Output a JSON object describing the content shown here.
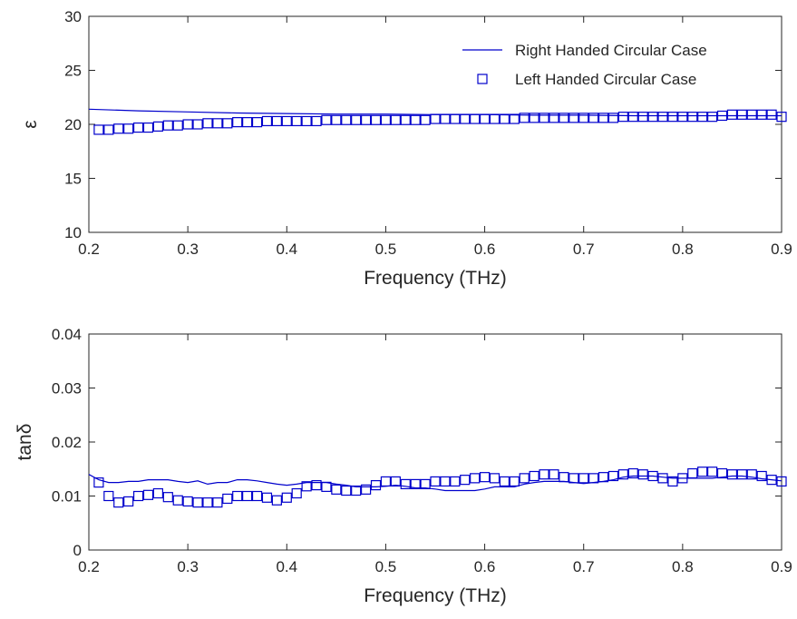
{
  "chart_data": [
    {
      "type": "line",
      "xlabel": "Frequency (THz)",
      "ylabel": "ε",
      "xlim": [
        0.2,
        0.9
      ],
      "ylim": [
        10,
        30
      ],
      "xticks": [
        0.2,
        0.3,
        0.4,
        0.5,
        0.6,
        0.7,
        0.8,
        0.9
      ],
      "xtick_labels": [
        "0.2",
        "0.3",
        "0.4",
        "0.5",
        "0.6",
        "0.7",
        "0.8",
        "0.9"
      ],
      "yticks": [
        10,
        15,
        20,
        25,
        30
      ],
      "ytick_labels": [
        "10",
        "15",
        "20",
        "25",
        "30"
      ],
      "grid": false,
      "legend": "top-right",
      "series": [
        {
          "name": "Right Handed Circular Case",
          "style": "line",
          "color": "#0000cc",
          "x": [
            0.2,
            0.25,
            0.3,
            0.35,
            0.4,
            0.45,
            0.5,
            0.55,
            0.6,
            0.65,
            0.7,
            0.75,
            0.8,
            0.85,
            0.9
          ],
          "y": [
            21.4,
            21.25,
            21.15,
            21.05,
            21.0,
            20.95,
            20.95,
            20.9,
            20.9,
            20.85,
            20.85,
            20.8,
            20.8,
            20.8,
            20.8
          ]
        },
        {
          "name": "Left Handed Circular Case",
          "style": "square-markers",
          "color": "#0000cc",
          "x": [
            0.21,
            0.22,
            0.23,
            0.24,
            0.25,
            0.26,
            0.27,
            0.28,
            0.29,
            0.3,
            0.31,
            0.32,
            0.33,
            0.34,
            0.35,
            0.36,
            0.37,
            0.38,
            0.39,
            0.4,
            0.41,
            0.42,
            0.43,
            0.44,
            0.45,
            0.46,
            0.47,
            0.48,
            0.49,
            0.5,
            0.51,
            0.52,
            0.53,
            0.54,
            0.55,
            0.56,
            0.57,
            0.58,
            0.59,
            0.6,
            0.61,
            0.62,
            0.63,
            0.64,
            0.65,
            0.66,
            0.67,
            0.68,
            0.69,
            0.7,
            0.71,
            0.72,
            0.73,
            0.74,
            0.75,
            0.76,
            0.77,
            0.78,
            0.79,
            0.8,
            0.81,
            0.82,
            0.83,
            0.84,
            0.85,
            0.86,
            0.87,
            0.88,
            0.89,
            0.9
          ],
          "y": [
            19.5,
            19.5,
            19.6,
            19.6,
            19.7,
            19.7,
            19.8,
            19.9,
            19.9,
            20.0,
            20.0,
            20.1,
            20.1,
            20.1,
            20.2,
            20.2,
            20.2,
            20.3,
            20.3,
            20.3,
            20.3,
            20.3,
            20.3,
            20.4,
            20.4,
            20.4,
            20.4,
            20.4,
            20.4,
            20.4,
            20.4,
            20.4,
            20.4,
            20.4,
            20.5,
            20.5,
            20.5,
            20.5,
            20.5,
            20.5,
            20.5,
            20.5,
            20.5,
            20.6,
            20.6,
            20.6,
            20.6,
            20.6,
            20.6,
            20.6,
            20.6,
            20.6,
            20.6,
            20.7,
            20.7,
            20.7,
            20.7,
            20.7,
            20.7,
            20.7,
            20.7,
            20.7,
            20.7,
            20.8,
            20.9,
            20.9,
            20.9,
            20.9,
            20.9,
            20.7
          ]
        }
      ]
    },
    {
      "type": "line",
      "xlabel": "Frequency (THz)",
      "ylabel": "tanδ",
      "xlim": [
        0.2,
        0.9
      ],
      "ylim": [
        0,
        0.04
      ],
      "xticks": [
        0.2,
        0.3,
        0.4,
        0.5,
        0.6,
        0.7,
        0.8,
        0.9
      ],
      "xtick_labels": [
        "0.2",
        "0.3",
        "0.4",
        "0.5",
        "0.6",
        "0.7",
        "0.8",
        "0.9"
      ],
      "yticks": [
        0,
        0.01,
        0.02,
        0.03,
        0.04
      ],
      "ytick_labels": [
        "0",
        "0.01",
        "0.02",
        "0.03",
        "0.04"
      ],
      "grid": false,
      "series": [
        {
          "name": "Right Handed Circular Case",
          "style": "line",
          "color": "#0000cc",
          "x": [
            0.2,
            0.21,
            0.22,
            0.23,
            0.24,
            0.25,
            0.26,
            0.27,
            0.28,
            0.29,
            0.3,
            0.31,
            0.32,
            0.33,
            0.34,
            0.35,
            0.36,
            0.37,
            0.38,
            0.39,
            0.4,
            0.41,
            0.42,
            0.43,
            0.44,
            0.45,
            0.46,
            0.47,
            0.48,
            0.49,
            0.5,
            0.51,
            0.52,
            0.53,
            0.54,
            0.55,
            0.56,
            0.57,
            0.58,
            0.59,
            0.6,
            0.61,
            0.62,
            0.63,
            0.64,
            0.65,
            0.66,
            0.67,
            0.68,
            0.69,
            0.7,
            0.71,
            0.72,
            0.73,
            0.74,
            0.75,
            0.76,
            0.77,
            0.78,
            0.79,
            0.8,
            0.81,
            0.82,
            0.83,
            0.84,
            0.85,
            0.86,
            0.87,
            0.88,
            0.89,
            0.9
          ],
          "y": [
            0.014,
            0.013,
            0.0125,
            0.0125,
            0.0127,
            0.0127,
            0.013,
            0.013,
            0.013,
            0.0127,
            0.0125,
            0.0128,
            0.0122,
            0.0125,
            0.0125,
            0.013,
            0.013,
            0.0128,
            0.0125,
            0.0122,
            0.012,
            0.0122,
            0.0125,
            0.0125,
            0.0125,
            0.0122,
            0.012,
            0.0117,
            0.0117,
            0.0117,
            0.0118,
            0.012,
            0.0118,
            0.0115,
            0.0115,
            0.0113,
            0.011,
            0.011,
            0.011,
            0.011,
            0.0113,
            0.0117,
            0.0117,
            0.0117,
            0.0122,
            0.0125,
            0.0127,
            0.0127,
            0.0127,
            0.0125,
            0.0123,
            0.0125,
            0.0127,
            0.013,
            0.0135,
            0.0137,
            0.0137,
            0.0137,
            0.0135,
            0.0133,
            0.0133,
            0.0133,
            0.0133,
            0.0133,
            0.0135,
            0.0137,
            0.0137,
            0.0135,
            0.0132,
            0.013,
            0.0128
          ]
        },
        {
          "name": "Left Handed Circular Case",
          "style": "square-markers",
          "color": "#0000cc",
          "x": [
            0.21,
            0.22,
            0.23,
            0.24,
            0.25,
            0.26,
            0.27,
            0.28,
            0.29,
            0.3,
            0.31,
            0.32,
            0.33,
            0.34,
            0.35,
            0.36,
            0.37,
            0.38,
            0.39,
            0.4,
            0.41,
            0.42,
            0.43,
            0.44,
            0.45,
            0.46,
            0.47,
            0.48,
            0.49,
            0.5,
            0.51,
            0.52,
            0.53,
            0.54,
            0.55,
            0.56,
            0.57,
            0.58,
            0.59,
            0.6,
            0.61,
            0.62,
            0.63,
            0.64,
            0.65,
            0.66,
            0.67,
            0.68,
            0.69,
            0.7,
            0.71,
            0.72,
            0.73,
            0.74,
            0.75,
            0.76,
            0.77,
            0.78,
            0.79,
            0.8,
            0.81,
            0.82,
            0.83,
            0.84,
            0.85,
            0.86,
            0.87,
            0.88,
            0.89,
            0.9
          ],
          "y": [
            0.0125,
            0.01,
            0.0088,
            0.009,
            0.01,
            0.0102,
            0.0105,
            0.0098,
            0.0092,
            0.009,
            0.0088,
            0.0088,
            0.0088,
            0.0095,
            0.01,
            0.01,
            0.01,
            0.0097,
            0.0092,
            0.0097,
            0.0105,
            0.0118,
            0.012,
            0.0117,
            0.0112,
            0.011,
            0.011,
            0.0112,
            0.012,
            0.0127,
            0.0127,
            0.0122,
            0.0122,
            0.0122,
            0.0127,
            0.0127,
            0.0127,
            0.013,
            0.0133,
            0.0135,
            0.0133,
            0.0127,
            0.0127,
            0.0133,
            0.0137,
            0.014,
            0.014,
            0.0135,
            0.0133,
            0.0133,
            0.0133,
            0.0135,
            0.0137,
            0.014,
            0.0142,
            0.014,
            0.0137,
            0.0133,
            0.0127,
            0.0133,
            0.0142,
            0.0145,
            0.0145,
            0.0142,
            0.014,
            0.014,
            0.014,
            0.0137,
            0.013,
            0.0127
          ]
        }
      ]
    }
  ]
}
